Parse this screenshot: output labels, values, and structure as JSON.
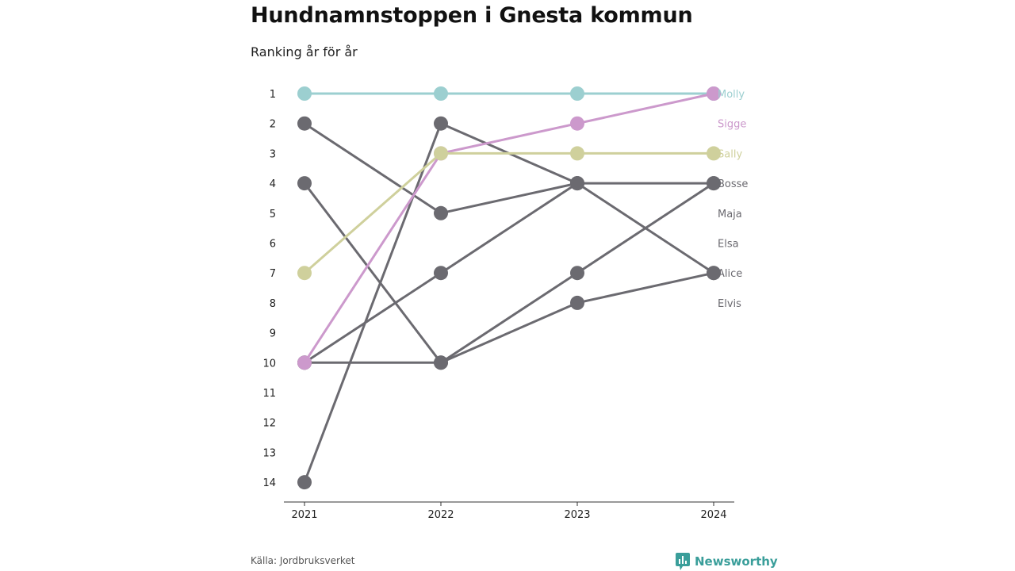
{
  "title": "Hundnamnstoppen i Gnesta kommun",
  "subtitle": "Ranking år för år",
  "source": "Källa: Jordbruksverket",
  "brand": "Newsworthy",
  "chart_data": {
    "type": "line",
    "subtype": "bump",
    "x": [
      "2021",
      "2022",
      "2023",
      "2024"
    ],
    "y_ticks": [
      1,
      2,
      3,
      4,
      5,
      6,
      7,
      8,
      9,
      10,
      11,
      12,
      13,
      14
    ],
    "ylim": [
      1,
      14
    ],
    "y_inverted": true,
    "series": [
      {
        "name": "Molly",
        "color": "#9ccfd0",
        "values": [
          1,
          1,
          1,
          1
        ]
      },
      {
        "name": "Sigge",
        "color": "#cc99cc",
        "values": [
          10,
          3,
          2,
          1
        ]
      },
      {
        "name": "Sally",
        "color": "#cfd09c",
        "values": [
          7,
          3,
          3,
          3
        ]
      },
      {
        "name": "Bosse",
        "color": "#6b6a70",
        "values": [
          2,
          5,
          4,
          4
        ]
      },
      {
        "name": "Maja",
        "color": "#6b6a70",
        "values": [
          10,
          7,
          4,
          null
        ]
      },
      {
        "name": "Elsa",
        "color": "#6b6a70",
        "values": [
          10,
          10,
          7,
          4
        ]
      },
      {
        "name": "Alice",
        "color": "#6b6a70",
        "values": [
          14,
          2,
          4,
          7
        ]
      },
      {
        "name": "Elvis",
        "color": "#6b6a70",
        "values": [
          4,
          10,
          8,
          7
        ]
      }
    ],
    "end_labels": [
      "Molly",
      "Sigge",
      "Sally",
      "Bosse",
      "Maja",
      "Elsa",
      "Alice",
      "Elvis"
    ],
    "grid": false
  }
}
